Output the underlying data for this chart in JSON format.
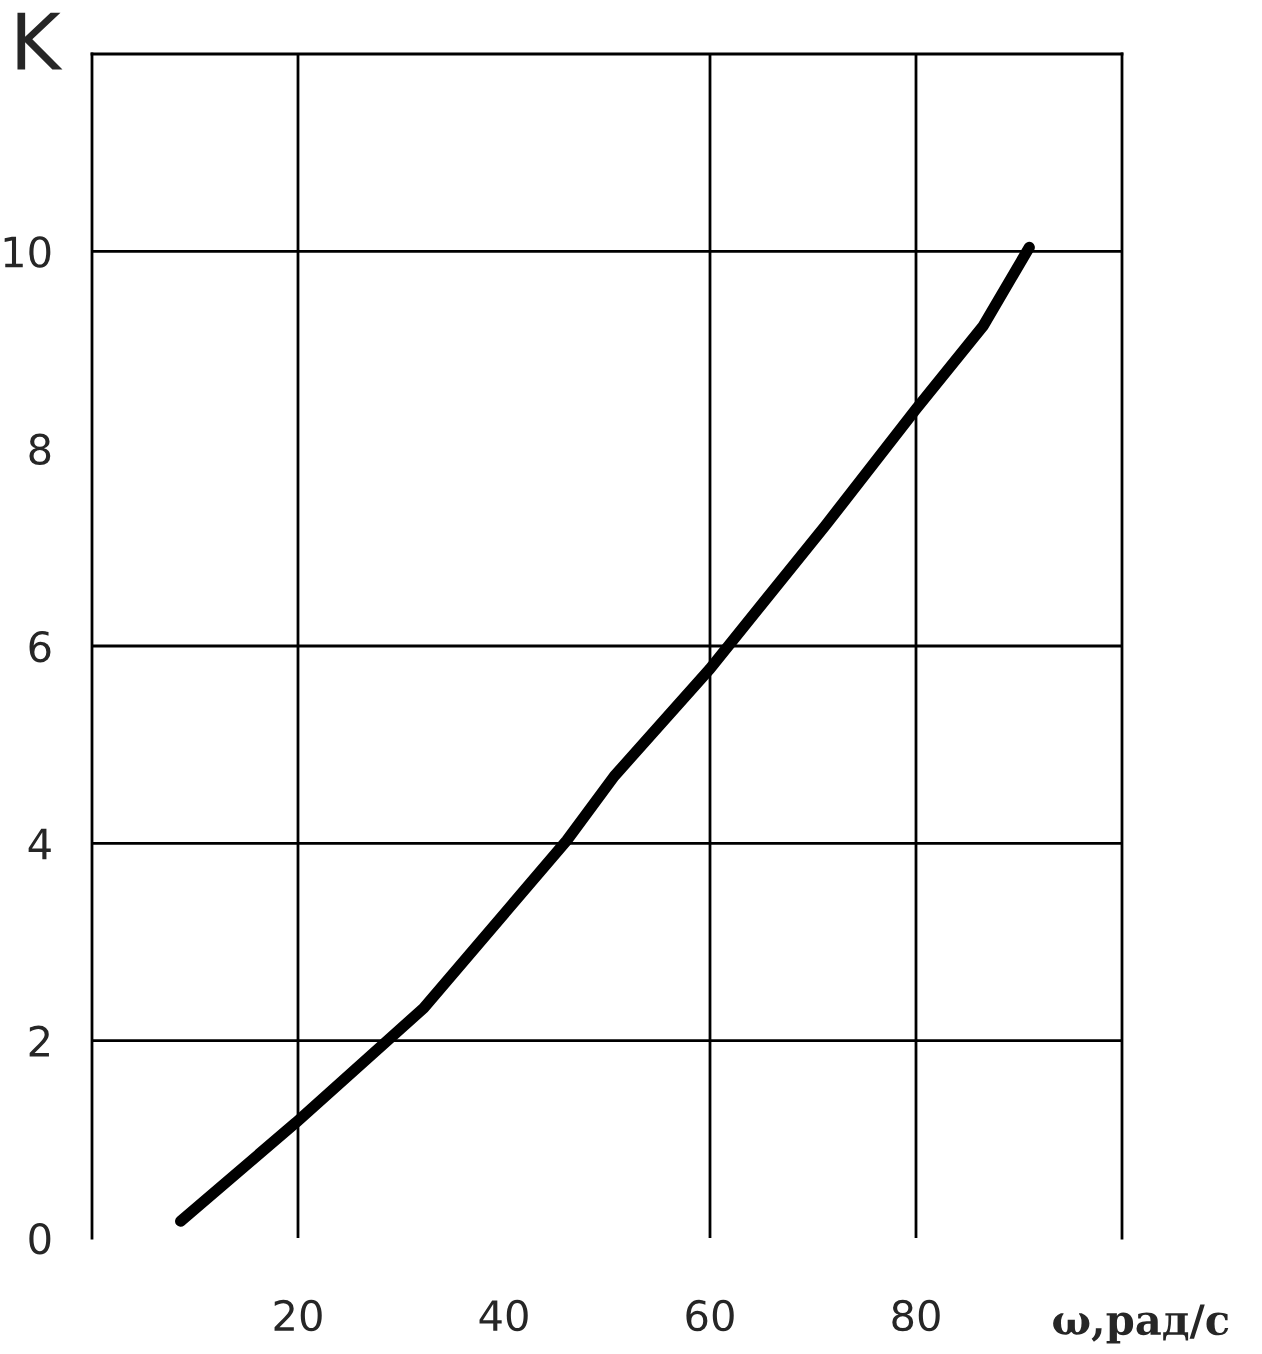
{
  "chart_data": {
    "type": "line",
    "xlabel": "ω,рад/с",
    "ylabel": "K",
    "series": [
      {
        "color": "#000000",
        "x": [
          8.6,
          19.8,
          32.2,
          46.1,
          50.7,
          60,
          71.2,
          80,
          86.5,
          91
        ],
        "values": [
          0.17,
          1.17,
          2.33,
          4.03,
          4.68,
          5.77,
          7.22,
          8.4,
          9.24,
          10.04
        ]
      }
    ],
    "xlim": [
      0,
      100
    ],
    "ylim": [
      0,
      12
    ],
    "xticks": [
      20,
      40,
      60,
      80
    ],
    "yticks": [
      0,
      2,
      4,
      6,
      8,
      10
    ],
    "grid": false,
    "legend": false,
    "marker": "none",
    "line_style": "solid",
    "ref_lines": [
      {
        "axis": "x",
        "value": 20,
        "label": null
      },
      {
        "axis": "x",
        "value": 60,
        "label": null
      },
      {
        "axis": "x",
        "value": 80,
        "label": null
      },
      {
        "axis": "y",
        "value": 2,
        "label": null
      },
      {
        "axis": "y",
        "value": 4,
        "label": null
      },
      {
        "axis": "y",
        "value": 6,
        "label": null
      },
      {
        "axis": "y",
        "value": 10,
        "label": null
      }
    ]
  }
}
